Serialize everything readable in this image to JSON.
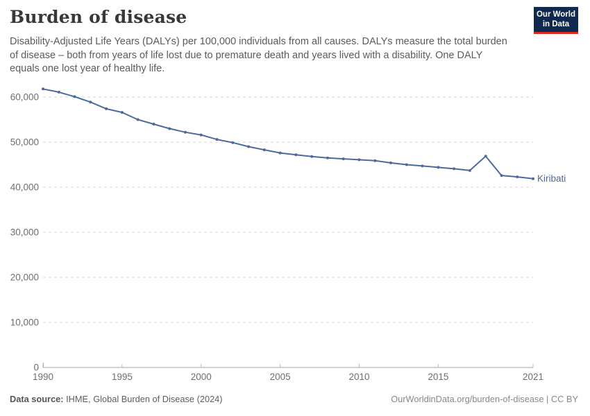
{
  "header": {
    "title": "Burden of disease",
    "subtitle": "Disability-Adjusted Life Years (DALYs) per 100,000 individuals from all causes. DALYs measure the total burden of disease – both from years of life lost due to premature death and years lived with a disability. One DALY equals one lost year of healthy life.",
    "logo": {
      "line1": "Our World",
      "line2": "in Data",
      "bg_color": "#10294e",
      "accent_color": "#dc2a20"
    }
  },
  "chart_data": {
    "type": "line",
    "title": "Burden of disease",
    "xlabel": "",
    "ylabel": "DALYs per 100,000 individuals",
    "x": [
      1990,
      1991,
      1992,
      1993,
      1994,
      1995,
      1996,
      1997,
      1998,
      1999,
      2000,
      2001,
      2002,
      2003,
      2004,
      2005,
      2006,
      2007,
      2008,
      2009,
      2010,
      2011,
      2012,
      2013,
      2014,
      2015,
      2016,
      2017,
      2018,
      2019,
      2020,
      2021
    ],
    "series": [
      {
        "name": "Kiribati",
        "color": "#4c6a9c",
        "values": [
          61800,
          61100,
          60100,
          58900,
          57400,
          56600,
          55000,
          54000,
          53000,
          52200,
          51600,
          50600,
          49900,
          49000,
          48300,
          47600,
          47200,
          46800,
          46500,
          46300,
          46100,
          45900,
          45400,
          45000,
          44700,
          44400,
          44100,
          43700,
          46900,
          42600,
          42300,
          41900
        ]
      }
    ],
    "xlim": [
      1990,
      2021
    ],
    "ylim": [
      0,
      64000
    ],
    "x_ticks": [
      {
        "value": 1990,
        "label": "1990"
      },
      {
        "value": 1995,
        "label": "1995"
      },
      {
        "value": 2000,
        "label": "2000"
      },
      {
        "value": 2005,
        "label": "2005"
      },
      {
        "value": 2010,
        "label": "2010"
      },
      {
        "value": 2015,
        "label": "2015"
      },
      {
        "value": 2021,
        "label": "2021"
      }
    ],
    "y_ticks": [
      {
        "value": 0,
        "label": "0"
      },
      {
        "value": 10000,
        "label": "10,000"
      },
      {
        "value": 20000,
        "label": "20,000"
      },
      {
        "value": 30000,
        "label": "30,000"
      },
      {
        "value": 40000,
        "label": "40,000"
      },
      {
        "value": 50000,
        "label": "50,000"
      },
      {
        "value": 60000,
        "label": "60,000"
      }
    ],
    "grid": "horizontal-dashed",
    "legend_position": "end-of-line-label",
    "grid_color": "#d9d9d9",
    "axis_color": "#a3a3a3",
    "tick_label_color": "#6e6e6e"
  },
  "footer": {
    "source_label": "Data source:",
    "source_value": " IHME, Global Burden of Disease (2024)",
    "attribution": "OurWorldinData.org/burden-of-disease | CC BY"
  }
}
